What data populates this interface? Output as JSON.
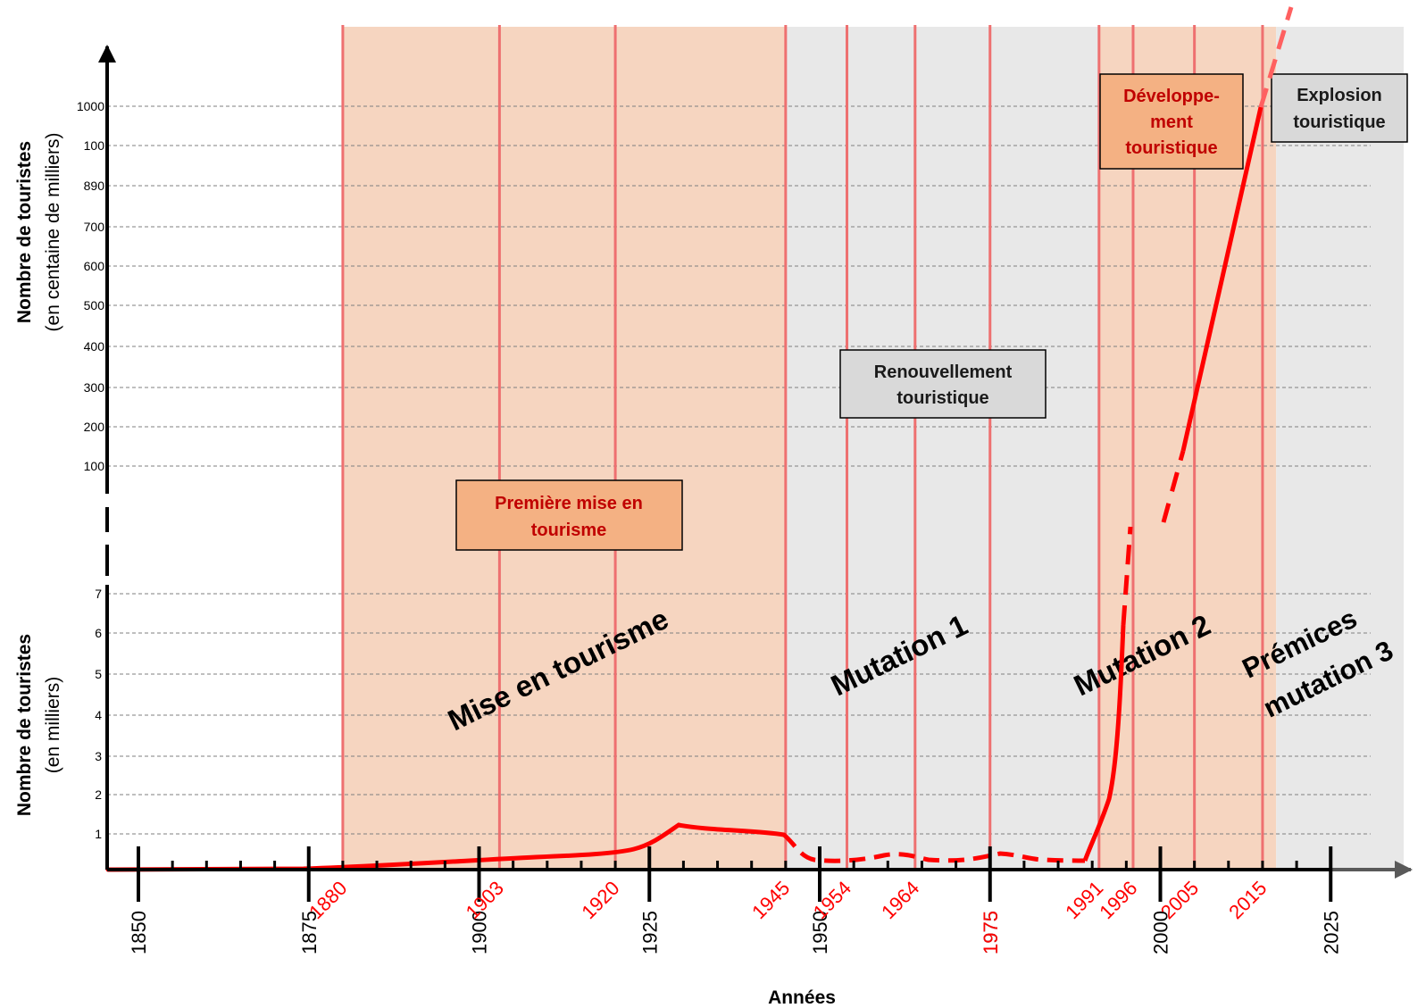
{
  "chart_data": {
    "type": "line",
    "xlabel": "Années",
    "ylabel_top": {
      "line1": "Nombre de touristes",
      "line2": "(en centaine de milliers)"
    },
    "ylabel_bottom": {
      "line1": "Nombre de touristes",
      "line2": "(en milliers)"
    },
    "x_major_ticks": [
      1850,
      1875,
      1900,
      1925,
      1950,
      1975,
      2000,
      2025
    ],
    "x_event_years": [
      1880,
      1903,
      1920,
      1945,
      1954,
      1964,
      1975,
      1991,
      1996,
      2005,
      2015
    ],
    "y_lower_ticks": [
      "1",
      "2",
      "3",
      "4",
      "5",
      "6",
      "7"
    ],
    "y_upper_ticks": [
      "100",
      "200",
      "300",
      "400",
      "500",
      "600",
      "700",
      "890",
      "100",
      "1000"
    ],
    "periods": [
      {
        "label": "Mise en tourisme",
        "start": 1880,
        "end": 1945,
        "color": "#f6d5c0"
      },
      {
        "label": "Mutation 1",
        "start": 1945,
        "end": 1991,
        "color": "#e8e8e8"
      },
      {
        "label": "Mutation 2",
        "start": 1991,
        "end": 2017,
        "color": "#f6d5c0"
      },
      {
        "label_line1": "Prémices",
        "label_line2": "mutation 3",
        "start": 2017,
        "end": 2030,
        "color": "#e8e8e8"
      }
    ],
    "phase_boxes": [
      {
        "line1": "Première mise en",
        "line2": "tourisme",
        "fill": "#f4b183",
        "text_color": "#c00000"
      },
      {
        "line1": "Renouvellement",
        "line2": "touristique",
        "fill": "#d9d9d9",
        "text_color": "#1a1a1a"
      },
      {
        "line1": "Développe-",
        "line2": "ment",
        "line3": "touristique",
        "fill": "#f4b183",
        "text_color": "#c00000"
      },
      {
        "line1": "Explosion",
        "line2": "touristique",
        "fill": "#d9d9d9",
        "text_color": "#1a1a1a"
      }
    ],
    "series": [
      {
        "line_color": "#ff0000",
        "points": [
          [
            1850,
            0
          ],
          [
            1880,
            0.1
          ],
          [
            1903,
            0.25
          ],
          [
            1920,
            0.45
          ],
          [
            1925,
            0.7
          ],
          [
            1930,
            0.95
          ],
          [
            1945,
            0.9
          ],
          [
            1954,
            0.2
          ],
          [
            1964,
            0.5
          ],
          [
            1975,
            0.3
          ],
          [
            1991,
            0.3
          ],
          [
            1996,
            7
          ],
          [
            2015,
            1000
          ]
        ]
      }
    ],
    "grid": true,
    "legend": "none"
  }
}
